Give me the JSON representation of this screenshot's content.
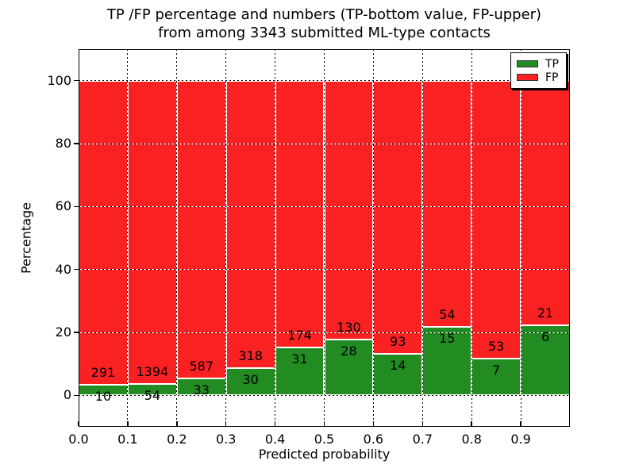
{
  "title": {
    "line1": "TP /FP percentage and numbers (TP-bottom value, FP-upper)",
    "line2": "from among 3343 submitted ML-type contacts"
  },
  "axes": {
    "xlabel": "Predicted probability",
    "ylabel": "Percentage",
    "x_tick_labels": [
      "0.0",
      "0.1",
      "0.2",
      "0.3",
      "0.4",
      "0.5",
      "0.6",
      "0.7",
      "0.8",
      "0.9"
    ],
    "y_tick_values": [
      0,
      20,
      40,
      60,
      80,
      100
    ],
    "xlim": [
      0.0,
      1.0
    ],
    "ylim": [
      -10,
      110
    ],
    "grid": true
  },
  "legend": {
    "position": "upper right",
    "items": [
      {
        "label": "TP",
        "color": "#228b22"
      },
      {
        "label": "FP",
        "color": "#f92121"
      }
    ]
  },
  "colors": {
    "tp_green": "#228b22",
    "fp_red": "#f92121",
    "bar_edge": "#ffffff",
    "grid_dot": "#000000",
    "grid_gap": "#ffffff",
    "axis": "#000000",
    "background": "#ffffff"
  },
  "chart_data": {
    "type": "bar",
    "stacked": true,
    "normalized_to_percent": true,
    "title": "TP /FP percentage and numbers (TP-bottom value, FP-upper) from among 3343 submitted ML-type contacts",
    "xlabel": "Predicted probability",
    "ylabel": "Percentage",
    "categories": [
      0.0,
      0.1,
      0.2,
      0.3,
      0.4,
      0.5,
      0.6,
      0.7,
      0.8,
      0.9
    ],
    "bar_width": 0.1,
    "series": [
      {
        "name": "TP",
        "color": "#228b22",
        "counts": [
          10,
          54,
          33,
          30,
          31,
          28,
          14,
          15,
          7,
          6
        ],
        "percent": [
          3.32,
          3.73,
          5.32,
          8.62,
          15.12,
          17.72,
          13.08,
          21.74,
          11.67,
          22.22
        ]
      },
      {
        "name": "FP",
        "color": "#f92121",
        "counts": [
          291,
          1394,
          587,
          318,
          174,
          130,
          93,
          54,
          53,
          21
        ],
        "percent": [
          96.68,
          96.27,
          94.68,
          91.38,
          84.88,
          82.28,
          86.92,
          78.26,
          88.33,
          77.78
        ]
      }
    ],
    "total_contacts": 3343,
    "xlim": [
      0.0,
      1.0
    ],
    "ylim": [
      -10,
      110
    ],
    "legend_position": "upper right",
    "grid": true
  }
}
